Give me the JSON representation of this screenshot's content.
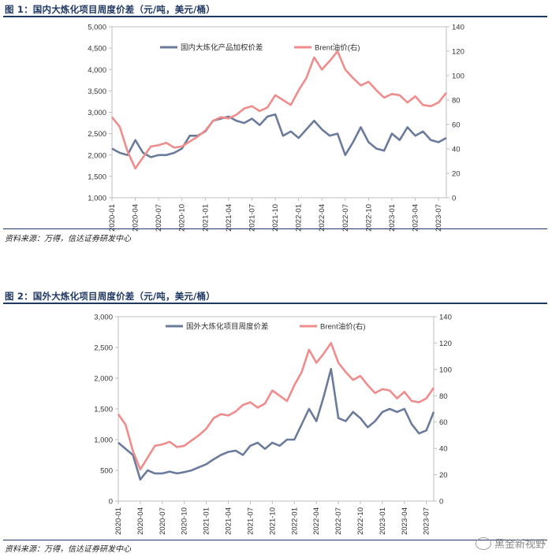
{
  "figure1": {
    "title": "图 1：国内大炼化项目周度价差（元/吨，美元/桶）",
    "source": "资料来源：万得，信达证券研发中心",
    "chart_data": {
      "type": "line",
      "dates": [
        "2020-01",
        "2020-02",
        "2020-03",
        "2020-04",
        "2020-05",
        "2020-06",
        "2020-07",
        "2020-08",
        "2020-09",
        "2020-10",
        "2020-11",
        "2020-12",
        "2021-01",
        "2021-02",
        "2021-03",
        "2021-04",
        "2021-05",
        "2021-06",
        "2021-07",
        "2021-08",
        "2021-09",
        "2021-10",
        "2021-11",
        "2021-12",
        "2022-01",
        "2022-02",
        "2022-03",
        "2022-04",
        "2022-05",
        "2022-06",
        "2022-07",
        "2022-08",
        "2022-09",
        "2022-10",
        "2022-11",
        "2022-12",
        "2023-01",
        "2023-02",
        "2023-03",
        "2023-04",
        "2023-05",
        "2023-06",
        "2023-07",
        "2023-08"
      ],
      "x_ticks": [
        "2020-01",
        "2020-04",
        "2020-07",
        "2020-10",
        "2021-01",
        "2021-04",
        "2021-07",
        "2021-10",
        "2022-01",
        "2022-04",
        "2022-07",
        "2022-10",
        "2023-01",
        "2023-04",
        "2023-07"
      ],
      "ylim_left": [
        1000,
        5000
      ],
      "yticks_left": [
        "1,000",
        "1,500",
        "2,000",
        "2,500",
        "3,000",
        "3,500",
        "4,000",
        "4,500",
        "5,000"
      ],
      "ylim_right": [
        0,
        140
      ],
      "yticks_right": [
        "0",
        "20",
        "40",
        "60",
        "80",
        "100",
        "120",
        "140"
      ],
      "series": [
        {
          "name": "国内大炼化产品加权价差",
          "axis": "left",
          "color": "#6b7b9c",
          "values": [
            2150,
            2050,
            2000,
            2350,
            2050,
            1950,
            2000,
            2000,
            2050,
            2150,
            2450,
            2450,
            2550,
            2800,
            2850,
            2900,
            2800,
            2750,
            2850,
            2700,
            2900,
            2950,
            2450,
            2550,
            2400,
            2600,
            2800,
            2600,
            2450,
            2500,
            2000,
            2300,
            2650,
            2300,
            2150,
            2100,
            2500,
            2350,
            2650,
            2450,
            2550,
            2350,
            2300,
            2400
          ]
        },
        {
          "name": "Brent油价(右)",
          "axis": "right",
          "color": "#ef8c8c",
          "values": [
            66,
            58,
            38,
            24,
            33,
            42,
            43,
            45,
            41,
            42,
            46,
            50,
            55,
            63,
            66,
            65,
            68,
            73,
            75,
            71,
            74,
            84,
            80,
            76,
            88,
            98,
            115,
            105,
            112,
            120,
            105,
            98,
            92,
            95,
            88,
            82,
            85,
            84,
            78,
            83,
            76,
            75,
            78,
            86
          ]
        }
      ],
      "legend_placement": "top",
      "grid": false
    }
  },
  "figure2": {
    "title": "图 2：国外大炼化项目周度价差（元/吨，美元/桶）",
    "source": "资料来源：万得，信达证券研发中心",
    "chart_data": {
      "type": "line",
      "dates": [
        "2020-01",
        "2020-02",
        "2020-03",
        "2020-04",
        "2020-05",
        "2020-06",
        "2020-07",
        "2020-08",
        "2020-09",
        "2020-10",
        "2020-11",
        "2020-12",
        "2021-01",
        "2021-02",
        "2021-03",
        "2021-04",
        "2021-05",
        "2021-06",
        "2021-07",
        "2021-08",
        "2021-09",
        "2021-10",
        "2021-11",
        "2021-12",
        "2022-01",
        "2022-02",
        "2022-03",
        "2022-04",
        "2022-05",
        "2022-06",
        "2022-07",
        "2022-08",
        "2022-09",
        "2022-10",
        "2022-11",
        "2022-12",
        "2023-01",
        "2023-02",
        "2023-03",
        "2023-04",
        "2023-05",
        "2023-06",
        "2023-07",
        "2023-08"
      ],
      "x_ticks": [
        "2020-01",
        "2020-04",
        "2020-07",
        "2020-10",
        "2021-01",
        "2021-04",
        "2021-07",
        "2021-10",
        "2022-01",
        "2022-04",
        "2022-07",
        "2022-10",
        "2023-01",
        "2023-04",
        "2023-07"
      ],
      "ylim_left": [
        0,
        3000
      ],
      "yticks_left": [
        "0",
        "500",
        "1,000",
        "1,500",
        "2,000",
        "2,500",
        "3,000"
      ],
      "ylim_right": [
        0,
        140
      ],
      "yticks_right": [
        "0",
        "20",
        "40",
        "60",
        "80",
        "100",
        "120",
        "140"
      ],
      "series": [
        {
          "name": "国外大炼化项目周度价差",
          "axis": "left",
          "color": "#6b7b9c",
          "values": [
            950,
            850,
            750,
            350,
            500,
            450,
            450,
            480,
            450,
            470,
            500,
            550,
            600,
            680,
            750,
            800,
            820,
            750,
            900,
            950,
            850,
            950,
            900,
            1000,
            1000,
            1250,
            1500,
            1300,
            1700,
            2150,
            1350,
            1300,
            1450,
            1350,
            1200,
            1300,
            1450,
            1500,
            1450,
            1500,
            1250,
            1100,
            1150,
            1450
          ]
        },
        {
          "name": "Brent油价(右)",
          "axis": "right",
          "color": "#ef8c8c",
          "values": [
            66,
            58,
            38,
            24,
            33,
            42,
            43,
            45,
            41,
            42,
            46,
            50,
            55,
            63,
            66,
            65,
            68,
            73,
            75,
            71,
            74,
            84,
            80,
            76,
            88,
            98,
            115,
            105,
            112,
            120,
            105,
            98,
            92,
            95,
            88,
            82,
            85,
            84,
            78,
            83,
            76,
            75,
            78,
            86
          ]
        }
      ],
      "legend_placement": "top",
      "grid": false
    }
  },
  "watermark": {
    "text": "黑金新视野",
    "icon": "wechat-icon"
  }
}
